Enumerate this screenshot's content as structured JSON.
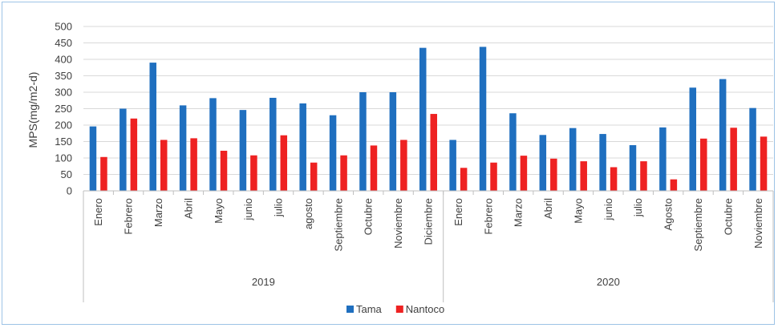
{
  "chart_data": {
    "type": "bar",
    "ylabel": "MPS(mg/m2-d)",
    "ylim": [
      0,
      500
    ],
    "yticks": [
      "0",
      "50",
      "100",
      "150",
      "200",
      "250",
      "300",
      "350",
      "400",
      "450",
      "500"
    ],
    "grid": true,
    "legend_position": "bottom",
    "groups": [
      {
        "label": "2019",
        "categories": [
          "Enero",
          "Febrero",
          "Marzo",
          "Abril",
          "Mayo",
          "junio",
          "julio",
          "agosto",
          "Septiembre",
          "Octubre",
          "Noviembre",
          "Diciembre"
        ]
      },
      {
        "label": "2020",
        "categories": [
          "Enero",
          "Febrero",
          "Marzo",
          "Abril",
          "Mayo",
          "junio",
          "julio",
          "Agosto",
          "Septiembre",
          "Octubre",
          "Noviembre"
        ]
      }
    ],
    "series": [
      {
        "name": "Tama",
        "color": "#1f6fbf",
        "values": [
          196,
          250,
          390,
          260,
          282,
          246,
          283,
          266,
          230,
          300,
          300,
          435,
          155,
          438,
          236,
          170,
          191,
          173,
          139,
          193,
          314,
          340,
          252
        ]
      },
      {
        "name": "Nantoco",
        "color": "#ee2222",
        "values": [
          103,
          220,
          155,
          160,
          122,
          108,
          169,
          86,
          108,
          138,
          155,
          234,
          70,
          86,
          107,
          98,
          90,
          72,
          90,
          35,
          159,
          192,
          165
        ]
      }
    ]
  }
}
